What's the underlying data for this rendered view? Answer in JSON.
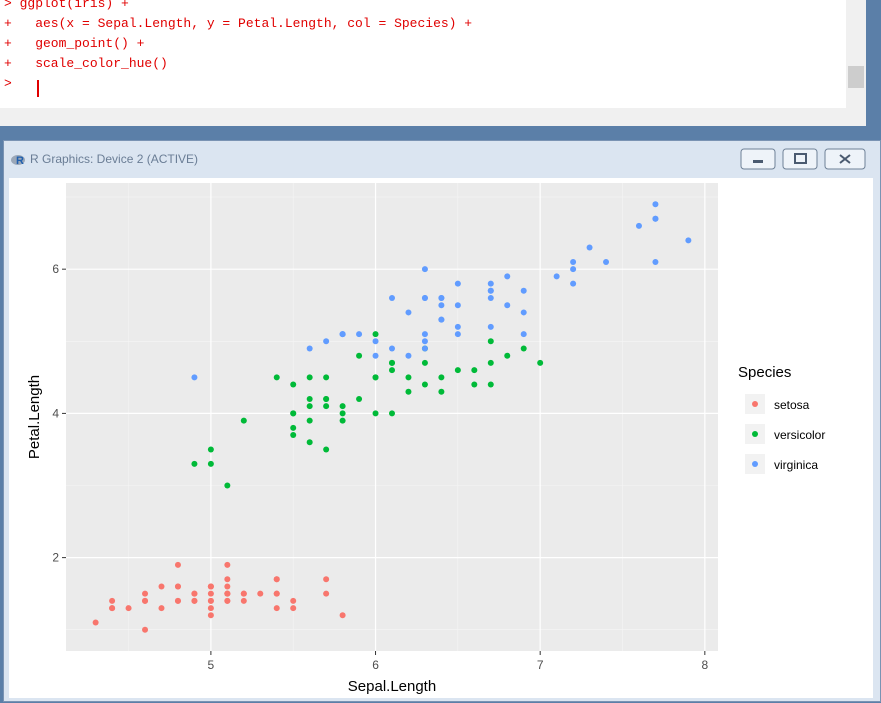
{
  "console": {
    "lines": [
      "> ggplot(iris) +",
      "+   aes(x = Sepal.Length, y = Petal.Length, col = Species) +",
      "+   geom_point() +",
      "+   scale_color_hue()",
      "> "
    ]
  },
  "window": {
    "title": "R Graphics: Device 2 (ACTIVE)"
  },
  "chart_data": {
    "type": "scatter",
    "x_label": "Sepal.Length",
    "y_label": "Petal.Length",
    "legend_title": "Species",
    "xlim": [
      4.12,
      8.08
    ],
    "ylim": [
      0.705,
      7.195
    ],
    "xticks": [
      5,
      6,
      7,
      8
    ],
    "yticks": [
      2,
      4,
      6
    ],
    "grid": true,
    "series": [
      {
        "name": "setosa",
        "color": "#F8766D",
        "x": [
          5.1,
          4.9,
          4.7,
          4.6,
          5.0,
          5.4,
          4.6,
          5.0,
          4.4,
          4.9,
          5.4,
          4.8,
          4.8,
          4.3,
          5.8,
          5.7,
          5.4,
          5.1,
          5.7,
          5.1,
          5.4,
          5.1,
          4.6,
          5.1,
          4.8,
          5.0,
          5.0,
          5.2,
          5.2,
          4.7,
          4.8,
          5.4,
          5.2,
          5.5,
          4.9,
          5.0,
          5.5,
          4.9,
          4.4,
          5.1,
          5.0,
          4.5,
          4.4,
          5.0,
          5.1,
          4.8,
          5.1,
          4.6,
          5.3,
          5.0
        ],
        "values": [
          1.4,
          1.4,
          1.3,
          1.5,
          1.4,
          1.7,
          1.4,
          1.5,
          1.4,
          1.5,
          1.5,
          1.6,
          1.4,
          1.1,
          1.2,
          1.5,
          1.3,
          1.4,
          1.7,
          1.5,
          1.7,
          1.5,
          1.0,
          1.7,
          1.9,
          1.6,
          1.6,
          1.5,
          1.4,
          1.6,
          1.6,
          1.5,
          1.5,
          1.4,
          1.5,
          1.2,
          1.3,
          1.4,
          1.3,
          1.5,
          1.3,
          1.3,
          1.3,
          1.6,
          1.9,
          1.4,
          1.6,
          1.4,
          1.5,
          1.4
        ]
      },
      {
        "name": "versicolor",
        "color": "#00BA38",
        "x": [
          7.0,
          6.4,
          6.9,
          5.5,
          6.5,
          5.7,
          6.3,
          4.9,
          6.6,
          5.2,
          5.0,
          5.9,
          6.0,
          6.1,
          5.6,
          6.7,
          5.6,
          5.8,
          6.2,
          5.6,
          5.9,
          6.1,
          6.3,
          6.1,
          6.4,
          6.6,
          6.8,
          6.7,
          6.0,
          5.7,
          5.5,
          5.5,
          5.8,
          6.0,
          5.4,
          6.0,
          6.7,
          6.3,
          5.6,
          5.5,
          5.5,
          6.1,
          5.8,
          5.0,
          5.6,
          5.7,
          5.7,
          6.2,
          5.1,
          5.7
        ],
        "values": [
          4.7,
          4.5,
          4.9,
          4.0,
          4.6,
          4.5,
          4.7,
          3.3,
          4.6,
          3.9,
          3.5,
          4.2,
          4.0,
          4.7,
          3.6,
          4.4,
          4.5,
          4.1,
          4.5,
          3.9,
          4.8,
          4.0,
          4.9,
          4.7,
          4.3,
          4.4,
          4.8,
          5.0,
          4.5,
          3.5,
          3.8,
          3.7,
          3.9,
          5.1,
          4.5,
          4.5,
          4.7,
          4.4,
          4.1,
          4.0,
          4.4,
          4.6,
          4.0,
          3.3,
          4.2,
          4.2,
          4.2,
          4.3,
          3.0,
          4.1
        ]
      },
      {
        "name": "virginica",
        "color": "#619CFF",
        "x": [
          6.3,
          5.8,
          7.1,
          6.3,
          6.5,
          7.6,
          4.9,
          7.3,
          6.7,
          7.2,
          6.5,
          6.4,
          6.8,
          5.7,
          5.8,
          6.4,
          6.5,
          7.7,
          7.7,
          6.0,
          6.9,
          5.6,
          7.7,
          6.3,
          6.7,
          7.2,
          6.2,
          6.1,
          6.4,
          7.2,
          7.4,
          7.9,
          6.4,
          6.3,
          6.1,
          7.7,
          6.3,
          6.4,
          6.0,
          6.9,
          6.7,
          6.9,
          5.8,
          6.8,
          6.7,
          6.7,
          6.3,
          6.5,
          6.2,
          5.9
        ],
        "values": [
          6.0,
          5.1,
          5.9,
          5.6,
          5.8,
          6.6,
          4.5,
          6.3,
          5.8,
          6.1,
          5.1,
          5.3,
          5.5,
          5.0,
          5.1,
          5.3,
          5.5,
          6.7,
          6.9,
          5.0,
          5.7,
          4.9,
          6.7,
          4.9,
          5.7,
          6.0,
          4.8,
          4.9,
          5.6,
          5.8,
          6.1,
          6.4,
          5.6,
          5.1,
          5.6,
          6.1,
          5.6,
          5.5,
          4.8,
          5.4,
          5.6,
          5.1,
          5.1,
          5.9,
          5.7,
          5.2,
          5.0,
          5.2,
          5.4,
          5.1
        ]
      }
    ]
  }
}
